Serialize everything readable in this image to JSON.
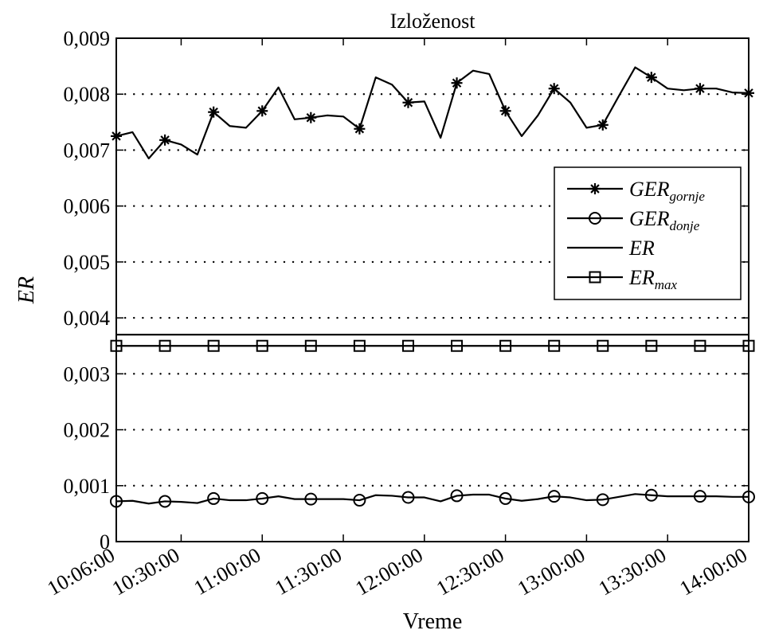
{
  "chart_data": {
    "type": "line",
    "title": "Izloženost",
    "xlabel": "Vreme",
    "ylabel": "ER",
    "x_tick_labels": [
      "10:06:00",
      "10:30:00",
      "11:00:00",
      "11:30:00",
      "12:00:00",
      "12:30:00",
      "13:00:00",
      "13:30:00",
      "14:00:00"
    ],
    "x_tick_minutes": [
      606,
      630,
      660,
      690,
      720,
      750,
      780,
      810,
      840
    ],
    "xlim": [
      606,
      840
    ],
    "y_tick_labels": [
      "0",
      "0,001",
      "0,002",
      "0,003",
      "0,004",
      "0,005",
      "0,006",
      "0,007",
      "0,008",
      "0,009"
    ],
    "y_tick_values": [
      0,
      0.001,
      0.002,
      0.003,
      0.004,
      0.005,
      0.006,
      0.007,
      0.008,
      0.009
    ],
    "ylim": [
      0,
      0.009
    ],
    "grid": "horizontal-dotted",
    "legend_position": "right-middle",
    "x": [
      606,
      612,
      618,
      624,
      630,
      636,
      642,
      648,
      654,
      660,
      666,
      672,
      678,
      684,
      690,
      696,
      702,
      708,
      714,
      720,
      726,
      732,
      738,
      744,
      750,
      756,
      762,
      768,
      774,
      780,
      786,
      792,
      798,
      804,
      810,
      816,
      822,
      828,
      834,
      840
    ],
    "series": [
      {
        "name": "GER",
        "name_sub": "gornje",
        "marker": "star",
        "marker_x": [
          606,
          624,
          642,
          660,
          678,
          696,
          714,
          732,
          750,
          768,
          786,
          804,
          822,
          840
        ],
        "values": [
          0.00725,
          0.00732,
          0.00685,
          0.00718,
          0.0071,
          0.00692,
          0.00768,
          0.00743,
          0.0074,
          0.0077,
          0.00812,
          0.00755,
          0.00758,
          0.00762,
          0.0076,
          0.00738,
          0.0083,
          0.00817,
          0.00785,
          0.00787,
          0.00722,
          0.0082,
          0.00842,
          0.00836,
          0.0077,
          0.00725,
          0.00762,
          0.0081,
          0.00785,
          0.0074,
          0.00745,
          0.00797,
          0.00848,
          0.0083,
          0.0081,
          0.00807,
          0.0081,
          0.0081,
          0.00803,
          0.00802
        ]
      },
      {
        "name": "GER",
        "name_sub": "donje",
        "marker": "circle",
        "marker_x": [
          606,
          624,
          642,
          660,
          678,
          696,
          714,
          732,
          750,
          768,
          786,
          804,
          822,
          840
        ],
        "values": [
          0.00072,
          0.00073,
          0.00068,
          0.00072,
          0.00071,
          0.00069,
          0.00077,
          0.00074,
          0.00074,
          0.00077,
          0.00081,
          0.00076,
          0.00076,
          0.00076,
          0.00076,
          0.00074,
          0.00083,
          0.00082,
          0.00079,
          0.00079,
          0.00072,
          0.00082,
          0.00084,
          0.00084,
          0.00077,
          0.00073,
          0.00076,
          0.00081,
          0.00079,
          0.00074,
          0.00075,
          0.0008,
          0.00085,
          0.00083,
          0.00081,
          0.00081,
          0.00081,
          0.00081,
          0.0008,
          0.0008
        ]
      },
      {
        "name": "ER",
        "marker": "none",
        "values_const": 0.0037
      },
      {
        "name": "ER",
        "name_sub": "max",
        "marker": "square",
        "marker_x": [
          606,
          624,
          642,
          660,
          678,
          696,
          714,
          732,
          750,
          768,
          786,
          804,
          822,
          840
        ],
        "values_const": 0.0035
      }
    ]
  }
}
